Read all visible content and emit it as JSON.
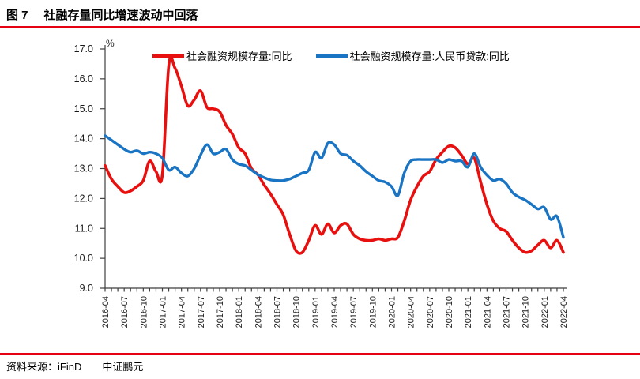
{
  "header": {
    "figure_label": "图 7",
    "title": "社融存量同比增速波动中回落"
  },
  "footer": {
    "source_label": "资料来源：iFinD",
    "brand": "中证鹏元"
  },
  "colors": {
    "accent_red": "#e60012",
    "axis": "#3f3f3f"
  },
  "chart_data": {
    "type": "line",
    "title": "社融存量同比增速波动中回落",
    "y_unit": "%",
    "ylim": [
      9.0,
      17.0
    ],
    "y_ticks": [
      "9.0",
      "10.0",
      "11.0",
      "12.0",
      "13.0",
      "14.0",
      "15.0",
      "16.0",
      "17.0"
    ],
    "x_start": "2016-04",
    "x_interval": "monthly",
    "x_tick_labels": [
      "2016-04",
      "2016-07",
      "2016-10",
      "2017-01",
      "2017-04",
      "2017-07",
      "2017-10",
      "2018-01",
      "2018-04",
      "2018-07",
      "2018-10",
      "2019-01",
      "2019-04",
      "2019-07",
      "2019-10",
      "2020-01",
      "2020-04",
      "2020-07",
      "2020-10",
      "2021-01",
      "2021-04",
      "2021-07",
      "2021-10",
      "2022-01",
      "2022-04"
    ],
    "grid": false,
    "legend_position": "top",
    "series": [
      {
        "name": "社会融资规模存量:同比",
        "color": "#e8100f",
        "values": [
          13.1,
          12.65,
          12.4,
          12.2,
          12.25,
          12.4,
          12.6,
          13.25,
          12.9,
          12.8,
          16.45,
          16.35,
          15.75,
          15.1,
          15.3,
          15.6,
          15.05,
          15.0,
          14.9,
          14.45,
          14.15,
          13.7,
          13.5,
          13.0,
          12.8,
          12.45,
          12.15,
          11.8,
          11.45,
          10.8,
          10.25,
          10.2,
          10.6,
          11.1,
          10.8,
          11.15,
          10.85,
          11.1,
          11.15,
          10.8,
          10.65,
          10.6,
          10.6,
          10.65,
          10.6,
          10.65,
          10.7,
          11.25,
          11.95,
          12.4,
          12.75,
          12.9,
          13.3,
          13.55,
          13.75,
          13.7,
          13.45,
          13.15,
          13.35,
          12.55,
          11.8,
          11.25,
          11.0,
          10.9,
          10.6,
          10.35,
          10.2,
          10.25,
          10.45,
          10.6,
          10.35,
          10.6,
          10.2
        ]
      },
      {
        "name": "社会融资规模存量:人民币贷款:同比",
        "color": "#1a74c4",
        "values": [
          14.1,
          13.95,
          13.8,
          13.65,
          13.55,
          13.6,
          13.5,
          13.55,
          13.5,
          13.35,
          12.95,
          13.05,
          12.85,
          12.75,
          13.0,
          13.45,
          13.8,
          13.5,
          13.55,
          13.65,
          13.3,
          13.15,
          13.1,
          12.95,
          12.8,
          12.7,
          12.62,
          12.6,
          12.6,
          12.65,
          12.75,
          12.85,
          12.95,
          13.55,
          13.35,
          13.85,
          13.8,
          13.5,
          13.45,
          13.25,
          13.1,
          12.9,
          12.75,
          12.6,
          12.55,
          12.4,
          12.1,
          12.85,
          13.25,
          13.3,
          13.3,
          13.3,
          13.3,
          13.2,
          13.3,
          13.25,
          13.25,
          13.05,
          13.5,
          13.05,
          12.78,
          12.6,
          12.65,
          12.5,
          12.2,
          12.05,
          11.95,
          11.8,
          11.65,
          11.7,
          11.3,
          11.4,
          10.7
        ]
      }
    ]
  }
}
